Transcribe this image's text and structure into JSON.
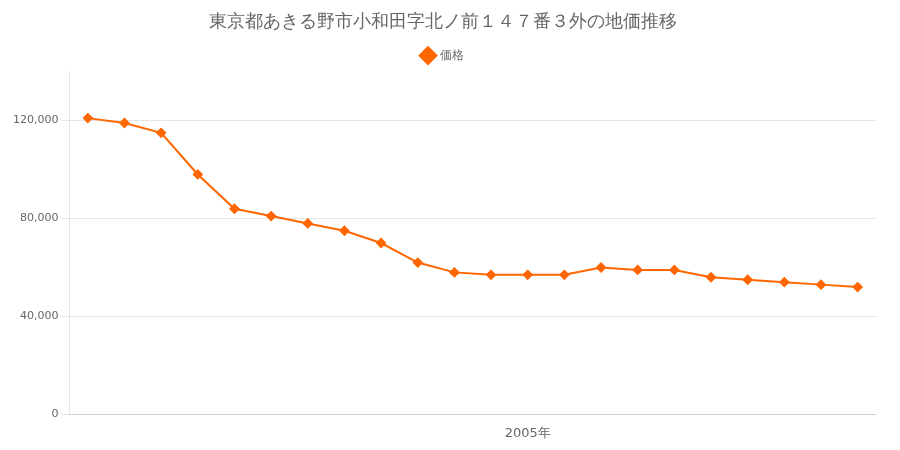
{
  "chart_data": {
    "type": "line",
    "title": "東京都あきる野市小和田字北ノ前１４７番３外の地価推移",
    "x": [
      1993,
      1994,
      1995,
      1996,
      1997,
      1998,
      1999,
      2000,
      2001,
      2002,
      2003,
      2004,
      2005,
      2006,
      2007,
      2008,
      2009,
      2010,
      2011,
      2012,
      2013,
      2014
    ],
    "series": [
      {
        "name": "価格",
        "color": "#FF6600",
        "marker": "diamond",
        "values": [
          121000,
          119000,
          115000,
          98000,
          84000,
          81000,
          78000,
          75000,
          70000,
          62000,
          58000,
          57000,
          57000,
          57000,
          60000,
          59000,
          59000,
          56000,
          55000,
          54000,
          53000,
          52000
        ]
      }
    ],
    "xlim": [
      1992.5,
      2014.5
    ],
    "xticks": [
      {
        "value": 2005,
        "label": "2005年"
      }
    ],
    "ylim": [
      0,
      140000
    ],
    "yticks": [
      0,
      {
        "value": 40000,
        "label": "40,000"
      },
      {
        "value": 80000,
        "label": "80,000"
      },
      {
        "value": 120000,
        "label": "120,000"
      }
    ],
    "grid": "y",
    "legend": "top"
  }
}
